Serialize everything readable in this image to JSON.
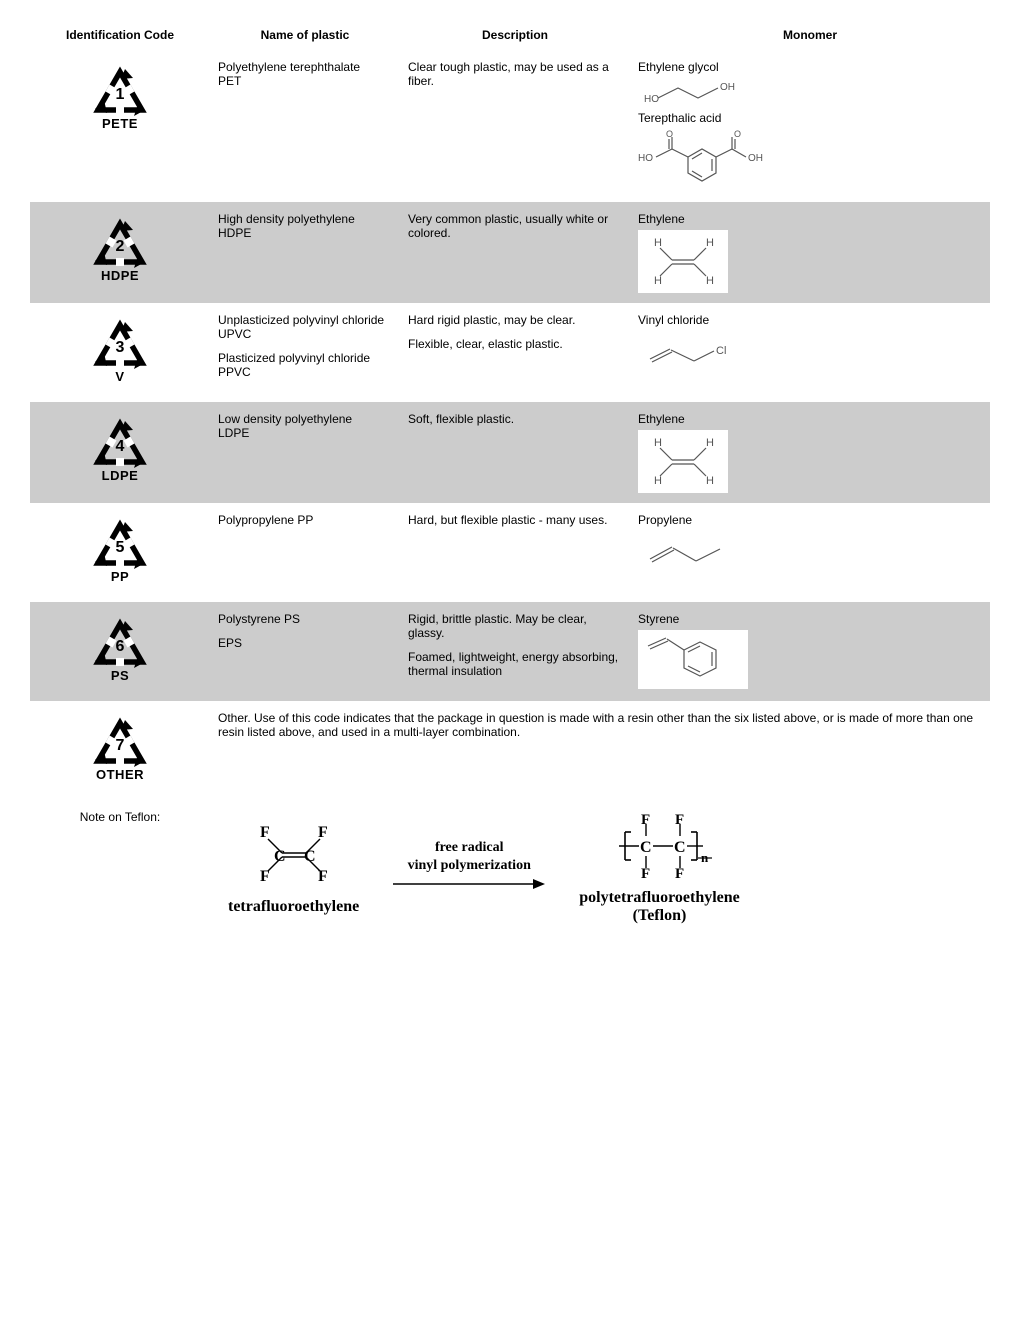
{
  "headers": {
    "code": "Identification Code",
    "name": "Name of plastic",
    "desc": "Description",
    "monomer": "Monomer"
  },
  "rows": [
    {
      "num": "1",
      "label": "PETE",
      "shaded": false,
      "names": [
        "Polyethylene terephthalate\nPET"
      ],
      "descs": [
        "Clear tough plastic, may be used as a fiber."
      ],
      "monomers": [
        "Ethylene glycol",
        "Terepthalic acid"
      ],
      "mols": [
        "glycol",
        "terephthalic"
      ]
    },
    {
      "num": "2",
      "label": "HDPE",
      "shaded": true,
      "names": [
        "High density polyethylene\nHDPE"
      ],
      "descs": [
        "Very common plastic, usually white or colored."
      ],
      "monomers": [
        "Ethylene"
      ],
      "mols": [
        "ethylene"
      ]
    },
    {
      "num": "3",
      "label": "V",
      "shaded": false,
      "names": [
        "Unplasticized polyvinyl chloride\nUPVC",
        "Plasticized polyvinyl chloride\nPPVC"
      ],
      "descs": [
        "Hard rigid plastic, may be clear.",
        "Flexible, clear, elastic plastic."
      ],
      "monomers": [
        "Vinyl chloride"
      ],
      "mols": [
        "vinylchloride"
      ]
    },
    {
      "num": "4",
      "label": "LDPE",
      "shaded": true,
      "names": [
        "Low density polyethylene\nLDPE"
      ],
      "descs": [
        "Soft, flexible plastic."
      ],
      "monomers": [
        "Ethylene"
      ],
      "mols": [
        "ethylene"
      ]
    },
    {
      "num": "5",
      "label": "PP",
      "shaded": false,
      "names": [
        "Polypropylene PP"
      ],
      "descs": [
        "Hard, but flexible plastic - many uses."
      ],
      "monomers": [
        "Propylene"
      ],
      "mols": [
        "propylene"
      ]
    },
    {
      "num": "6",
      "label": "PS",
      "shaded": true,
      "names": [
        "Polystyrene PS",
        "EPS"
      ],
      "descs": [
        "Rigid, brittle plastic. May be clear, glassy.",
        "Foamed, lightweight, energy absorbing, thermal insulation"
      ],
      "monomers": [
        "Styrene"
      ],
      "mols": [
        "styrene"
      ]
    }
  ],
  "other": {
    "num": "7",
    "label": "OTHER",
    "text": "Other. Use of this code indicates that the package in question is made with a resin other than the six listed above, or is made of more than one resin listed above, and used in a multi-layer combination."
  },
  "teflon": {
    "note": "Note on Teflon:",
    "left_label": "tetrafluoroethylene",
    "arrow_top": "free radical",
    "arrow_bottom": "vinyl polymerization",
    "right_label1": "polytetrafluoroethylene",
    "right_label2": "(Teflon)"
  },
  "colors": {
    "shaded_bg": "#cccccc",
    "text": "#000000",
    "mol_stroke": "#666666"
  }
}
